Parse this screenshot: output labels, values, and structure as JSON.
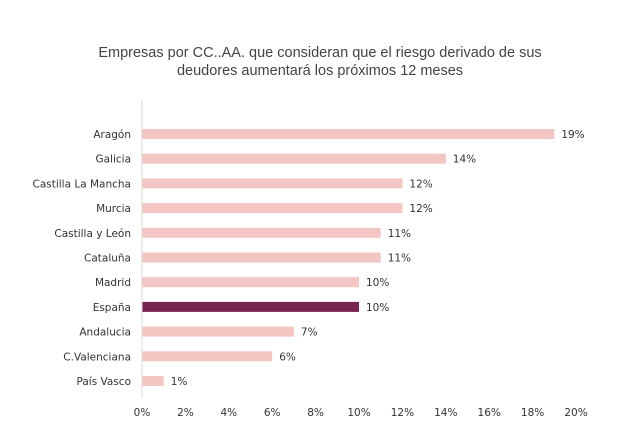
{
  "chart_data": {
    "type": "bar",
    "orientation": "horizontal",
    "title_lines": [
      "Empresas por CC..AA. que consideran que el riesgo derivado de sus",
      "deudores aumentará los próximos 12 meses"
    ],
    "categories": [
      "Aragón",
      "Galicia",
      "Castilla La Mancha",
      "Murcia",
      "Castilla y León",
      "Cataluña",
      "Madrid",
      "España",
      "Andalucia",
      "C.Valenciana",
      "País Vasco"
    ],
    "values": [
      19,
      14,
      12,
      12,
      11,
      11,
      10,
      10,
      7,
      6,
      1
    ],
    "value_labels": [
      "19%",
      "14%",
      "12%",
      "12%",
      "11%",
      "11%",
      "10%",
      "10%",
      "7%",
      "6%",
      "1%"
    ],
    "highlight": "España",
    "xlim": [
      0,
      20
    ],
    "xticks": [
      "0%",
      "2%",
      "4%",
      "6%",
      "8%",
      "10%",
      "12%",
      "14%",
      "16%",
      "18%",
      "20%"
    ],
    "grid": false,
    "colors": {
      "bar": "#f4c6c3",
      "highlight": "#7a2450",
      "axis": "#d9d9d9",
      "text": "#333333"
    }
  }
}
